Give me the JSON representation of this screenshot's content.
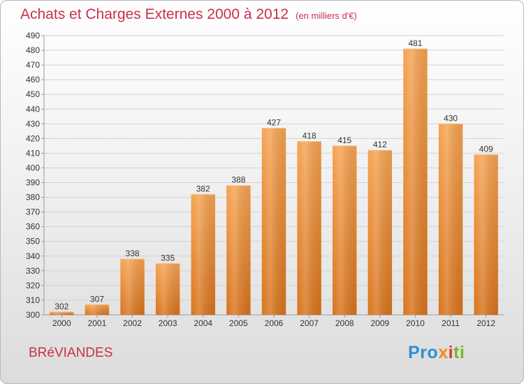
{
  "header": {
    "title": "Achats et Charges Externes 2000 à 2012",
    "unit": "(en milliers d'€)"
  },
  "footer": {
    "commune": "BRéVIANDES",
    "logo": {
      "p1": "Pro",
      "p2": "x",
      "p3": "i",
      "p4": "ti"
    }
  },
  "colors": {
    "bar_top": "#f5a352",
    "bar_bottom": "#d8731c",
    "title": "#c8304a"
  },
  "chart_data": {
    "type": "bar",
    "title": "Achats et Charges Externes 2000 à 2012",
    "subtitle": "(en milliers d'€)",
    "xlabel": "",
    "ylabel": "",
    "categories": [
      "2000",
      "2001",
      "2002",
      "2003",
      "2004",
      "2005",
      "2006",
      "2007",
      "2008",
      "2009",
      "2010",
      "2011",
      "2012"
    ],
    "values": [
      302,
      307,
      338,
      335,
      382,
      388,
      427,
      418,
      415,
      412,
      481,
      430,
      409
    ],
    "ylim": [
      300,
      490
    ],
    "ytick_step": 10,
    "grid": true,
    "legend": "none"
  }
}
